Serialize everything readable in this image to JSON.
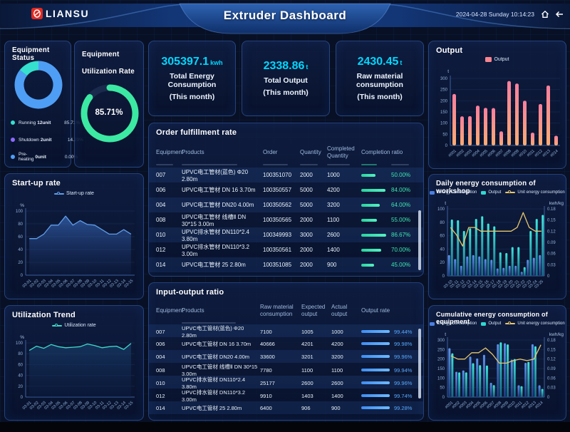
{
  "header": {
    "logo_text": "LIANSU",
    "title": "Extruder Dashboard",
    "datetime": "2024-04-28 Sunday 10:14:23"
  },
  "panels": {
    "equipment_status": {
      "title": "Equipment Status",
      "legend": [
        {
          "label": "Running",
          "units": "12unit",
          "percent": "85.71%",
          "color": "#35e0cf"
        },
        {
          "label": "Shutdown",
          "units": "2unit",
          "percent": "14.29%",
          "color": "#8b6bff"
        },
        {
          "label": "Pre-heating",
          "units": "0unit",
          "percent": "0.00%",
          "color": "#4f9ef5"
        }
      ]
    },
    "utilization_rate": {
      "title": "Equipment Utilization Rate",
      "value": "85.71%"
    },
    "kpis": [
      {
        "value": "305397.1",
        "unit": "kwh",
        "label1": "Total Energy Consumption",
        "label2": "(This month)"
      },
      {
        "value": "2338.86",
        "unit": "t",
        "label1": "Total Output",
        "label2": "(This month)"
      },
      {
        "value": "2430.45",
        "unit": "t",
        "label1": "Raw material consumption",
        "label2": "(This month)"
      }
    ],
    "order_table": {
      "title": "Order fulfillment rate",
      "columns": [
        "Equipment",
        "Products",
        "Order",
        "Quantity",
        "Completed Quantity",
        "Completion ratio"
      ],
      "rows": [
        {
          "eq": "007",
          "product": "UPVC电工管材(蓝色) Φ20 2.80m",
          "order": "100351070",
          "qty": "2000",
          "done": "1000",
          "ratio": 50.0,
          "ratio_text": "50.00%"
        },
        {
          "eq": "006",
          "product": "UPVC电工管材 DN 16 3.70m",
          "order": "100350557",
          "qty": "5000",
          "done": "4200",
          "ratio": 84.0,
          "ratio_text": "84.00%"
        },
        {
          "eq": "004",
          "product": "UPVC电工管材 DN20 4.00m",
          "order": "100350562",
          "qty": "5000",
          "done": "3200",
          "ratio": 64.0,
          "ratio_text": "64.00%"
        },
        {
          "eq": "008",
          "product": "UPVC电工管材 线槽Ⅱ DN 30*15 3.00m",
          "order": "100350565",
          "qty": "2000",
          "done": "1100",
          "ratio": 55.0,
          "ratio_text": "55.00%"
        },
        {
          "eq": "010",
          "product": "UPVC排水管材 DN110*2.4 3.80m",
          "order": "100349993",
          "qty": "3000",
          "done": "2600",
          "ratio": 86.67,
          "ratio_text": "86.67%"
        },
        {
          "eq": "012",
          "product": "UPVC排水管材 DN110*3.2 3.00m",
          "order": "100350561",
          "qty": "2000",
          "done": "1400",
          "ratio": 70.0,
          "ratio_text": "70.00%"
        },
        {
          "eq": "014",
          "product": "UPVC电工管材 25 2.80m",
          "order": "100351085",
          "qty": "2000",
          "done": "900",
          "ratio": 45.0,
          "ratio_text": "45.00%"
        }
      ]
    },
    "io_table": {
      "title": "Input-output ratio",
      "columns": [
        "Equipment",
        "Products",
        "Raw material consumption",
        "Expected output",
        "Actual output",
        "Output rate"
      ],
      "rows": [
        {
          "eq": "007",
          "product": "UPVC电工管材(蓝色) Φ20 2.80m",
          "raw": "7100",
          "expected": "1005",
          "actual": "1000",
          "ratio": 99.44,
          "ratio_text": "99.44%"
        },
        {
          "eq": "006",
          "product": "UPVC电工管材 DN 16 3.70m",
          "raw": "40666",
          "expected": "4201",
          "actual": "4200",
          "ratio": 99.98,
          "ratio_text": "99.98%"
        },
        {
          "eq": "004",
          "product": "UPVC电工管材 DN20 4.00m",
          "raw": "33600",
          "expected": "3201",
          "actual": "3200",
          "ratio": 99.96,
          "ratio_text": "99.96%"
        },
        {
          "eq": "008",
          "product": "UPVC电工管材 线槽Ⅱ DN 30*15 3.00m",
          "raw": "7780",
          "expected": "1100",
          "actual": "1100",
          "ratio": 99.94,
          "ratio_text": "99.94%"
        },
        {
          "eq": "010",
          "product": "UPVC排水管材 DN110*2.4 3.80m",
          "raw": "25177",
          "expected": "2600",
          "actual": "2600",
          "ratio": 99.96,
          "ratio_text": "99.96%"
        },
        {
          "eq": "012",
          "product": "UPVC排水管材 DN110*3.2 3.00m",
          "raw": "9910",
          "expected": "1403",
          "actual": "1400",
          "ratio": 99.74,
          "ratio_text": "99.74%"
        },
        {
          "eq": "014",
          "product": "UPVC电工管材 25 2.80m",
          "raw": "6400",
          "expected": "906",
          "actual": "900",
          "ratio": 99.28,
          "ratio_text": "99.28%"
        }
      ]
    },
    "startup": {
      "title": "Start-up rate"
    },
    "utilization_trend": {
      "title": "Utilization Trend"
    },
    "output": {
      "title": "Output"
    },
    "daily": {
      "title": "Daily energy consumption of workshop"
    },
    "cumulative": {
      "title": "Cumulative energy consumption of equipment"
    }
  },
  "chart_data": [
    {
      "id": "status",
      "type": "donut",
      "values": [
        {
          "name": "Running",
          "units": "12unit",
          "percent": 85.71
        },
        {
          "name": "Shutdown",
          "units": "2unit",
          "percent": 14.29
        },
        {
          "name": "Pre-heating",
          "units": "0unit",
          "percent": 0.0
        }
      ],
      "colors": [
        "#4f9ef5",
        "#35e0cf"
      ]
    },
    {
      "id": "ring",
      "type": "ring",
      "percent": 85.71,
      "label": "85.71%",
      "color": "#3ce9a2"
    },
    {
      "id": "startup",
      "type": "area",
      "x": [
        "03-01",
        "03-02",
        "03-03",
        "03-04",
        "03-05",
        "03-06",
        "03-07",
        "03-08",
        "03-09",
        "03-10",
        "03-11",
        "03-12",
        "03-13",
        "03-14",
        "03-15"
      ],
      "series": [
        {
          "name": "Start-up rate",
          "kind": "line",
          "color": "#5f9de8",
          "values": [
            57,
            57,
            64,
            78,
            78,
            92,
            78,
            85,
            79,
            78,
            71,
            64,
            64,
            71,
            64
          ]
        }
      ],
      "y": {
        "min": 0,
        "max": 100,
        "step": 20,
        "unit": "%"
      }
    },
    {
      "id": "utiltrend",
      "type": "area",
      "x": [
        "03-01",
        "03-02",
        "03-03",
        "03-04",
        "03-05",
        "03-06",
        "03-07",
        "03-08",
        "03-09",
        "03-10",
        "03-11",
        "03-12",
        "03-13",
        "03-14",
        "03-15"
      ],
      "series": [
        {
          "name": "Utilization rate",
          "kind": "line",
          "color": "#3fd9c9",
          "values": [
            86,
            94,
            90,
            97,
            93,
            91,
            92,
            93,
            98,
            95,
            91,
            93,
            94,
            88,
            99
          ]
        }
      ],
      "y": {
        "min": 0,
        "max": 100,
        "step": 20,
        "unit": "%"
      }
    },
    {
      "id": "output",
      "type": "bar",
      "x": [
        "#001",
        "#002",
        "#003",
        "#004",
        "#005",
        "#006",
        "#007",
        "#008",
        "#009",
        "#010",
        "#011",
        "#012",
        "#013",
        "#014"
      ],
      "series": [
        {
          "name": "Output",
          "kind": "bar",
          "color": "#f8858f",
          "grad": "pink",
          "values": [
            230,
            130,
            131,
            178,
            168,
            167,
            63,
            288,
            277,
            200,
            57,
            185,
            268,
            43
          ]
        }
      ],
      "y": {
        "min": 0,
        "max": 300,
        "step": 50,
        "unit": "t"
      }
    },
    {
      "id": "daily",
      "type": "combo",
      "x": [
        "03-10",
        "03-11",
        "03-12",
        "03-13",
        "03-14",
        "03-15",
        "03-16",
        "03-17",
        "03-18",
        "03-19",
        "03-20",
        "03-21",
        "03-22",
        "03-23",
        "03-24",
        "03-25"
      ],
      "series": [
        {
          "name": "Energy Consumption",
          "kind": "bar",
          "color": "#4d7fe0",
          "grad": "blue",
          "axis": "y",
          "values": [
            31,
            25,
            15,
            29,
            31,
            29,
            25,
            24,
            11,
            12,
            15,
            15,
            6,
            24,
            27,
            31
          ]
        },
        {
          "name": "Output",
          "kind": "bar",
          "color": "#2fd9d0",
          "grad": "teal",
          "axis": "y",
          "values": [
            84,
            83,
            67,
            71,
            85,
            89,
            78,
            74,
            35,
            34,
            43,
            43,
            13,
            67,
            85,
            91
          ]
        },
        {
          "name": "Unit energy consumption",
          "kind": "line",
          "color": "#e6c76d",
          "axis": "y2",
          "values": [
            0.13,
            0.11,
            0.08,
            0.13,
            0.13,
            0.12,
            0.12,
            0.12,
            0.12,
            0.12,
            0.12,
            0.13,
            0.17,
            0.13,
            0.12,
            0.12
          ]
        }
      ],
      "y": {
        "min": 0,
        "max": 100,
        "step": 20,
        "unit": "t"
      },
      "y2": {
        "min": 0,
        "max": 0.18,
        "step": 0.03,
        "unit": "kwh/kg"
      }
    },
    {
      "id": "cumulative",
      "type": "combo",
      "x": [
        "#001",
        "#002",
        "#003",
        "#004",
        "#005",
        "#006",
        "#007",
        "#008",
        "#009",
        "#010",
        "#011",
        "#012",
        "#013",
        "#014"
      ],
      "series": [
        {
          "name": "Energy Consumption",
          "kind": "bar",
          "color": "#4d7fe0",
          "grad": "blue",
          "axis": "y",
          "values": [
            257,
            133,
            140,
            213,
            203,
            222,
            75,
            278,
            283,
            197,
            62,
            180,
            278,
            62
          ]
        },
        {
          "name": "Output",
          "kind": "bar",
          "color": "#2fd9d0",
          "grad": "teal",
          "axis": "y",
          "values": [
            230,
            130,
            130,
            178,
            168,
            166,
            63,
            288,
            277,
            200,
            57,
            185,
            267,
            43
          ]
        },
        {
          "name": "Unit energy consumption",
          "kind": "line",
          "color": "#e6c76d",
          "axis": "y2",
          "values": [
            0.13,
            0.12,
            0.12,
            0.14,
            0.14,
            0.155,
            0.135,
            0.107,
            0.107,
            0.115,
            0.12,
            0.115,
            0.12,
            0.165
          ]
        }
      ],
      "y": {
        "min": 0,
        "max": 300,
        "step": 50,
        "unit": "t"
      },
      "y2": {
        "min": 0,
        "max": 0.18,
        "step": 0.03,
        "unit": "kwh/kg"
      }
    }
  ]
}
